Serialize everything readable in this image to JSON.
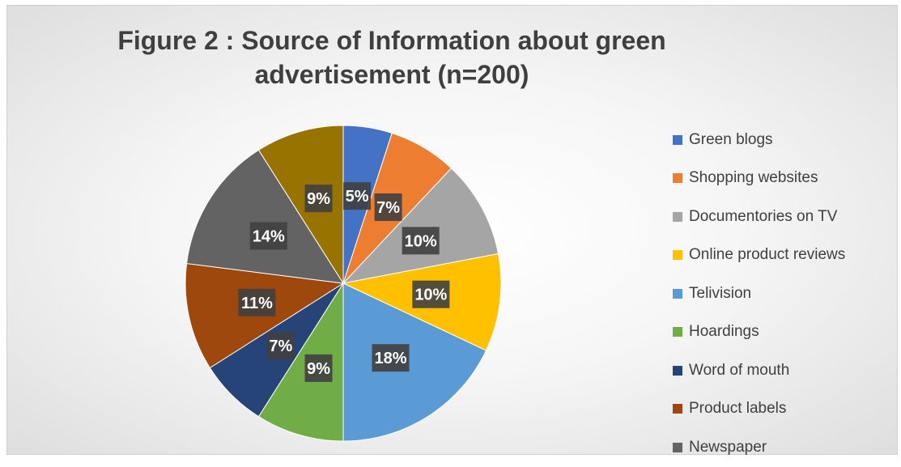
{
  "chart_data": {
    "type": "pie",
    "title": [
      "Figure 2 : Source of Information about green",
      "advertisement (n=200)"
    ],
    "slices": [
      {
        "label": "Green blogs",
        "value": 5,
        "display": "5%",
        "color": "#4472C4"
      },
      {
        "label": "Shopping websites",
        "value": 7,
        "display": "7%",
        "color": "#ED7D31"
      },
      {
        "label": "Documentories on TV",
        "value": 10,
        "display": "10%",
        "color": "#A5A5A5"
      },
      {
        "label": "Online product reviews",
        "value": 10,
        "display": "10%",
        "color": "#FFC000"
      },
      {
        "label": "Telivision",
        "value": 18,
        "display": "18%",
        "color": "#5B9BD5"
      },
      {
        "label": "Hoardings",
        "value": 9,
        "display": "9%",
        "color": "#70AD47"
      },
      {
        "label": "Word of mouth",
        "value": 7,
        "display": "7%",
        "color": "#264478"
      },
      {
        "label": "Product labels",
        "value": 11,
        "display": "11%",
        "color": "#9E480E"
      },
      {
        "label": "Newspaper",
        "value": 14,
        "display": "14%",
        "color": "#636363"
      },
      {
        "label": "",
        "value": 9,
        "display": "9%",
        "color": "#997300"
      }
    ],
    "legend_position": "right"
  }
}
